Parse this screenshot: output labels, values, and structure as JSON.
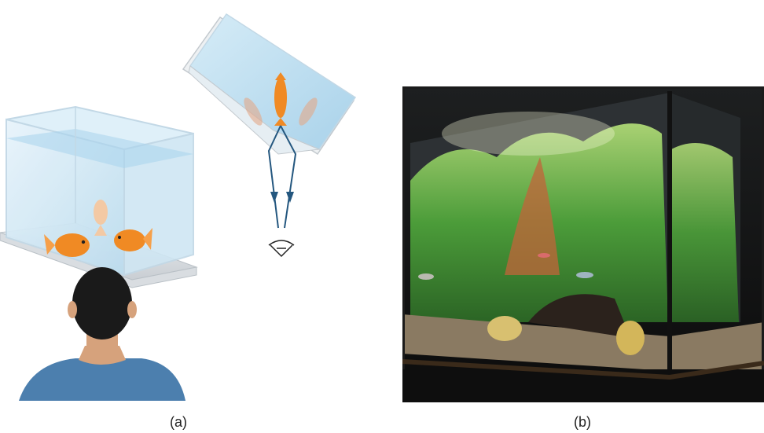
{
  "panels": [
    {
      "id": "a",
      "label": "(a)",
      "content": "illustration"
    },
    {
      "id": "b",
      "label": "(b)",
      "content": "photograph"
    }
  ],
  "colors": {
    "glass_edge": "#c7d9e6",
    "glass_fill": "#d9ecf6",
    "water_top": "#a8d3ec",
    "ray": "#24577f",
    "goldfish": "#f08a24",
    "ghost_fish": "#e3a98a",
    "shirt": "#4c7fae",
    "skin": "#d6a27c",
    "hair": "#1a1a1a",
    "tank_frame": "#1b1b1b",
    "plants": "#4fa83a",
    "gravel": "#8a7a62"
  },
  "icons": [
    "eye-icon",
    "arrow-down-icon"
  ]
}
